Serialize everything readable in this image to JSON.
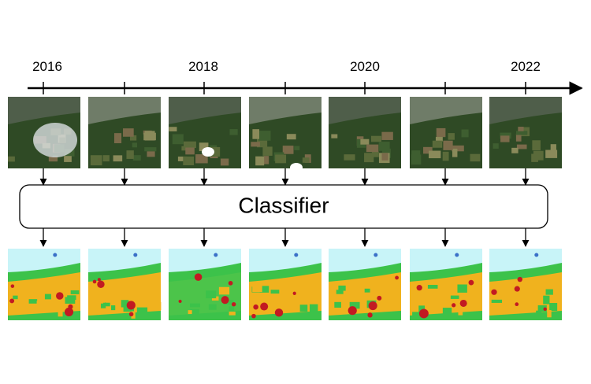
{
  "timeline": {
    "labels": [
      "2016",
      "2018",
      "2020",
      "2022"
    ]
  },
  "classifier": {
    "label": "Classifier"
  }
}
